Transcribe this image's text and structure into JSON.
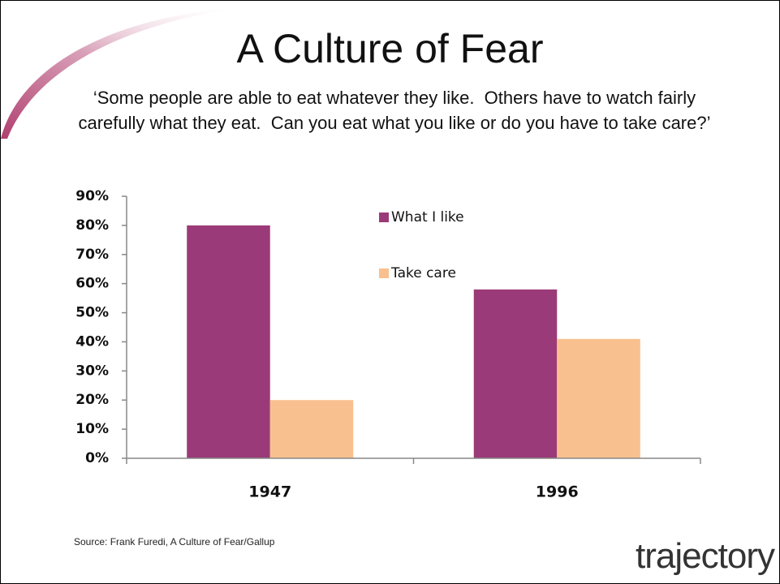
{
  "chart_data": {
    "type": "bar",
    "title": "A Culture of Fear",
    "subtitle": "‘Some people are able to eat whatever they like.  Others have to watch fairly carefully what they eat.  Can you eat what you like or do you have to take care?’",
    "categories": [
      "1947",
      "1996"
    ],
    "series": [
      {
        "name": "What I like",
        "color": "#9b3a78",
        "values": [
          80,
          58
        ]
      },
      {
        "name": "Take care",
        "color": "#f9c08f",
        "values": [
          20,
          41
        ]
      }
    ],
    "ylim": [
      0,
      90
    ],
    "yticks": [
      {
        "value": 0,
        "label": "0%"
      },
      {
        "value": 10,
        "label": "10%"
      },
      {
        "value": 20,
        "label": "20%"
      },
      {
        "value": 30,
        "label": "30%"
      },
      {
        "value": 40,
        "label": "40%"
      },
      {
        "value": 50,
        "label": "50%"
      },
      {
        "value": 60,
        "label": "60%"
      },
      {
        "value": 70,
        "label": "70%"
      },
      {
        "value": 80,
        "label": "80%"
      },
      {
        "value": 90,
        "label": "90%"
      }
    ],
    "grid": false,
    "legend": "top",
    "source": "Source: Frank Furedi, A Culture of Fear/Gallup"
  },
  "logo": "trajectory"
}
